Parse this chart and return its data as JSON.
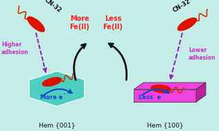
{
  "bg_color": "#c5ede8",
  "fig_width": 3.16,
  "fig_height": 1.89,
  "dpi": 100,
  "left_panel": {
    "hex_color_top": "#4dcfbf",
    "hex_color_side": "#1a9e8e",
    "hex_color_dark": "#0d6e62",
    "label": "Hem {001}",
    "adhesion_label": "Higher\nadhesion",
    "adhesion_color": "#cc33cc",
    "electron_label": "More e",
    "fe_label": "More\nFe(II)",
    "fe_color": "#ff2020"
  },
  "right_panel": {
    "box_color_top": "#ee44dd",
    "box_color_side": "#aa1188",
    "box_color_dark": "#661155",
    "label": "Hem {100}",
    "adhesion_label": "Lower\nadhesion",
    "adhesion_color": "#cc33cc",
    "electron_label": "Less  e",
    "fe_label": "Less\nFe(II)",
    "fe_color": "#ff2020"
  },
  "bacterium_color": "#dd1100",
  "flagella_color": "#cc3300",
  "arrow_color_black": "#111111",
  "arrow_color_blue": "#1144cc",
  "arrow_color_purple": "#9922bb",
  "label_color": "#111111",
  "cn32_color": "#111111"
}
